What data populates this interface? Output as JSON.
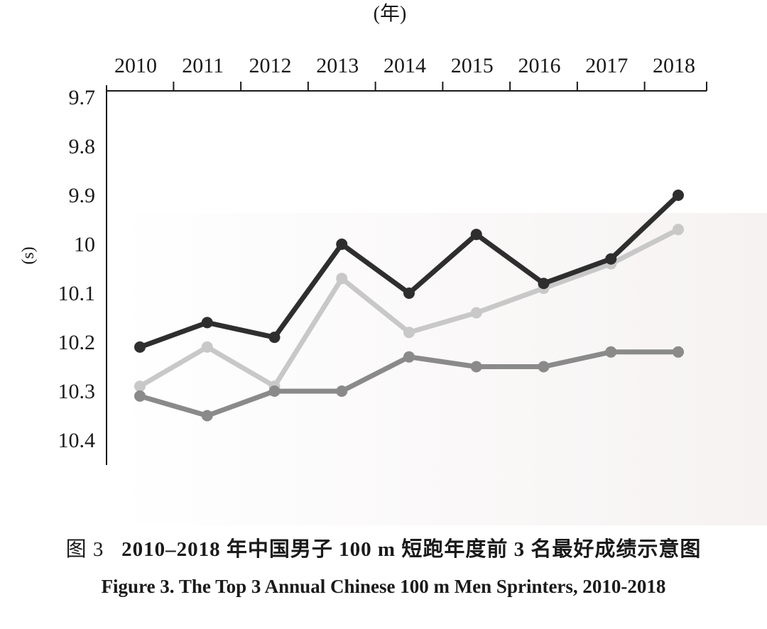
{
  "chart_data": {
    "type": "line",
    "x_axis_unit_label": "(年)",
    "y_axis_unit_label": "(s)",
    "y_inverted": true,
    "ylim": [
      9.7,
      10.45
    ],
    "yticks": [
      "9.7",
      "9.8",
      "9.9",
      "10",
      "10.1",
      "10.2",
      "10.3",
      "10.4"
    ],
    "categories": [
      "2010",
      "2011",
      "2012",
      "2013",
      "2014",
      "2015",
      "2016",
      "2017",
      "2018"
    ],
    "grid": false,
    "legend": "none",
    "series": [
      {
        "color": "#2e2e2e",
        "values": [
          10.21,
          10.16,
          10.19,
          10.0,
          10.1,
          9.98,
          10.08,
          10.03,
          9.9
        ]
      },
      {
        "color": "#c8c8c8",
        "values": [
          10.29,
          10.21,
          10.29,
          10.07,
          10.18,
          10.14,
          10.09,
          10.04,
          9.97
        ]
      },
      {
        "color": "#8a8a8a",
        "values": [
          10.31,
          10.35,
          10.3,
          10.3,
          10.23,
          10.25,
          10.25,
          10.22,
          10.22
        ]
      }
    ]
  },
  "caption": {
    "cn_lead": "图 3",
    "cn_title": "2010–2018 年中国男子 100  m 短跑年度前 3 名最好成绩示意图",
    "en_title": "Figure 3.  The Top 3 Annual Chinese 100 m Men Sprinters, 2010-2018"
  }
}
